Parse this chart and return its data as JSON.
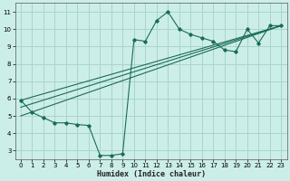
{
  "xlabel": "Humidex (Indice chaleur)",
  "bg_color": "#cceee8",
  "grid_color": "#aad4cc",
  "line_color": "#1a6b5a",
  "xlim": [
    -0.5,
    23.5
  ],
  "ylim": [
    2.5,
    11.5
  ],
  "xticks": [
    0,
    1,
    2,
    3,
    4,
    5,
    6,
    7,
    8,
    9,
    10,
    11,
    12,
    13,
    14,
    15,
    16,
    17,
    18,
    19,
    20,
    21,
    22,
    23
  ],
  "yticks": [
    3,
    4,
    5,
    6,
    7,
    8,
    9,
    10,
    11
  ],
  "series_main": {
    "x": [
      0,
      1,
      2,
      3,
      4,
      5,
      6,
      7,
      8,
      9,
      10,
      11,
      12,
      13,
      14,
      15,
      16,
      17,
      18,
      19,
      20,
      21,
      22,
      23
    ],
    "y": [
      5.9,
      5.2,
      4.9,
      4.6,
      4.6,
      4.5,
      4.45,
      2.72,
      2.72,
      2.82,
      9.4,
      9.3,
      10.5,
      11.0,
      10.0,
      9.7,
      9.5,
      9.3,
      8.8,
      8.7,
      10.0,
      9.2,
      10.2,
      10.2
    ]
  },
  "series_reg1": {
    "x": [
      0,
      23
    ],
    "y": [
      5.9,
      10.2
    ]
  },
  "series_reg2": {
    "x": [
      0,
      23
    ],
    "y": [
      5.0,
      10.2
    ]
  },
  "series_reg3": {
    "x": [
      0,
      23
    ],
    "y": [
      5.5,
      10.2
    ]
  }
}
